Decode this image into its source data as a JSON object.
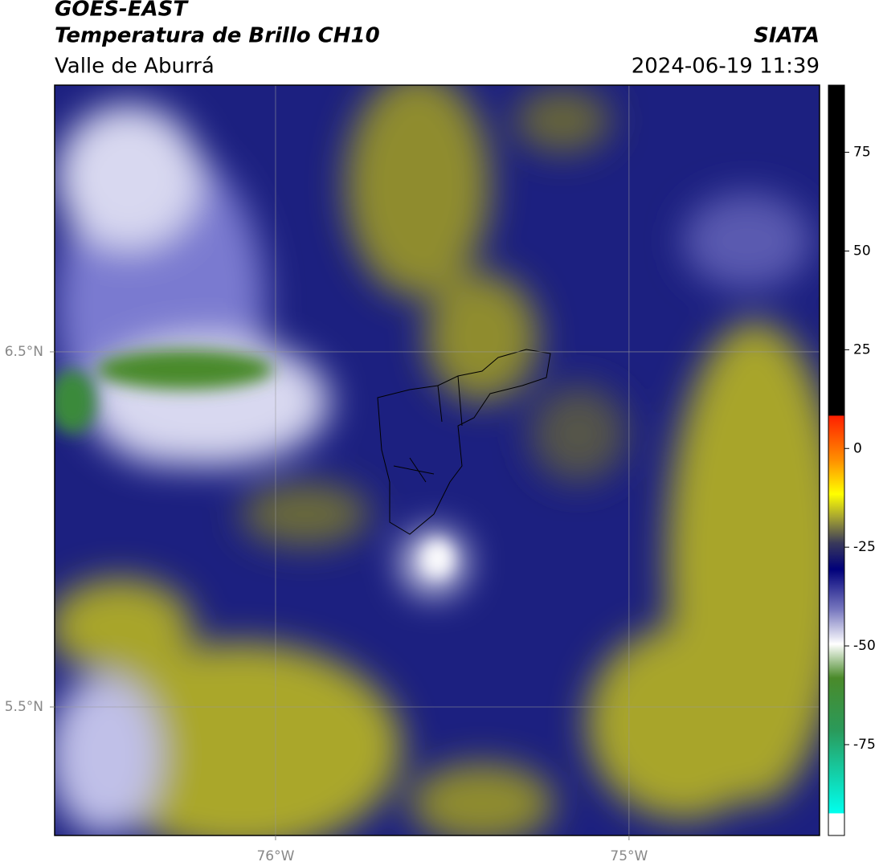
{
  "header": {
    "title": "GOES-EAST",
    "subtitle": "Temperatura de Brillo CH10",
    "region": "Valle de Aburrá",
    "source": "SIATA",
    "datetime": "2024-06-19 11:39"
  },
  "map": {
    "xlim": [
      -76.625,
      -74.461
    ],
    "ylim": [
      5.138,
      7.251
    ],
    "xticks": [
      {
        "value": -76,
        "label": "76°W"
      },
      {
        "value": -75,
        "label": "75°W"
      }
    ],
    "yticks": [
      {
        "value": 6.5,
        "label": "6.5°N"
      },
      {
        "value": 5.5,
        "label": "5.5°N"
      }
    ],
    "grid": true
  },
  "colorbar": {
    "lim": [
      -98,
      92
    ],
    "ticks": [
      75,
      50,
      25,
      0,
      -25,
      -50,
      -75
    ]
  }
}
